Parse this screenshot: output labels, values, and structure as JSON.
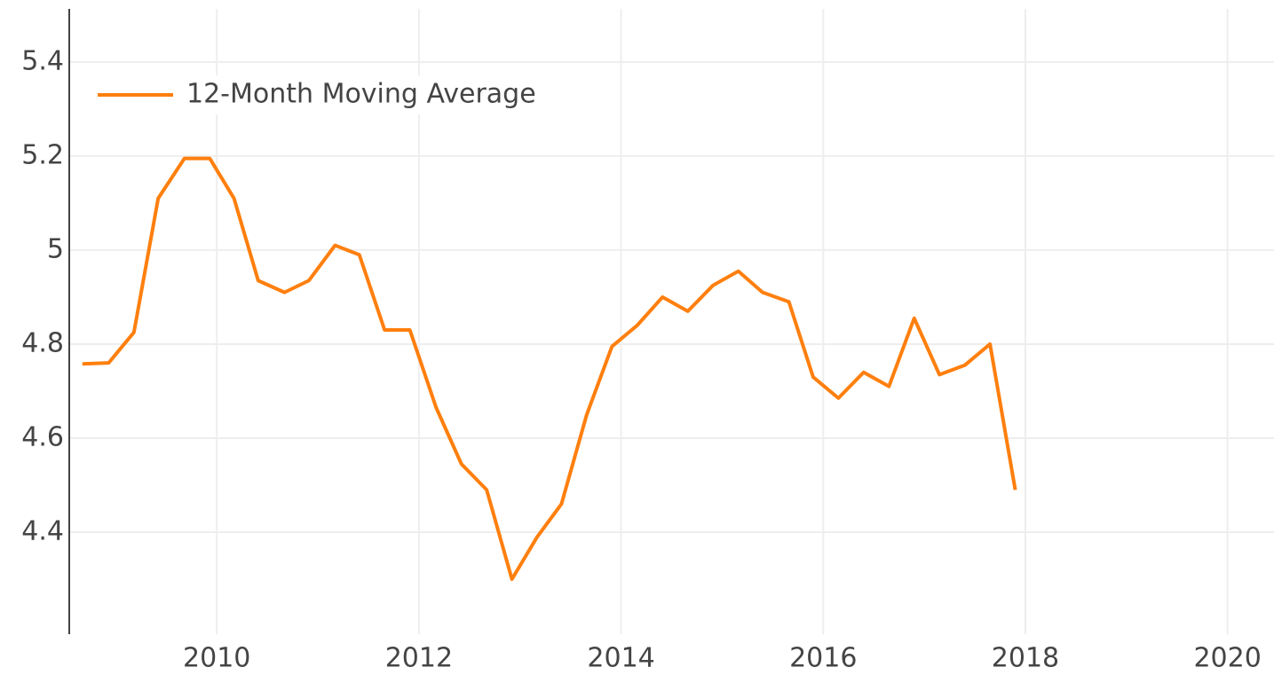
{
  "chart_data": {
    "type": "line",
    "x": [
      2008.67,
      2008.93,
      2009.18,
      2009.42,
      2009.68,
      2009.93,
      2010.17,
      2010.41,
      2010.67,
      2010.91,
      2011.17,
      2011.41,
      2011.66,
      2011.91,
      2012.17,
      2012.42,
      2012.67,
      2012.92,
      2013.17,
      2013.41,
      2013.66,
      2013.91,
      2014.16,
      2014.41,
      2014.66,
      2014.91,
      2015.16,
      2015.4,
      2015.66,
      2015.9,
      2016.15,
      2016.4,
      2016.65,
      2016.9,
      2017.15,
      2017.4,
      2017.65,
      2017.9
    ],
    "series": [
      {
        "name": "12-Month Moving Average",
        "color": "#ff7f0e",
        "values": [
          4.758,
          4.76,
          4.825,
          5.11,
          5.195,
          5.195,
          5.11,
          4.935,
          4.91,
          4.935,
          5.01,
          4.99,
          4.83,
          4.83,
          4.665,
          4.545,
          4.49,
          4.3,
          4.39,
          4.46,
          4.65,
          4.795,
          4.84,
          4.9,
          4.87,
          4.925,
          4.955,
          4.91,
          4.89,
          4.73,
          4.685,
          4.74,
          4.71,
          4.855,
          4.735,
          4.755,
          4.8,
          4.49
        ]
      }
    ],
    "xlim": [
      2008.54,
      2020.46
    ],
    "xticks": [
      2010,
      2012,
      2014,
      2016,
      2018,
      2020
    ],
    "ylim": [
      4.183,
      5.513
    ],
    "yticks": [
      4.4,
      4.6,
      4.8,
      5,
      5.2,
      5.4
    ],
    "grid": true,
    "legend": "top-left"
  }
}
